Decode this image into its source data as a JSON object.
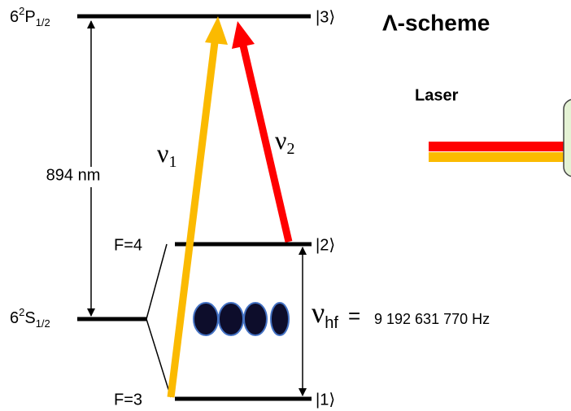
{
  "levels": {
    "p_state": {
      "base": "6",
      "sup": "2",
      "main": "P",
      "sub": "1/2",
      "ket": "|3⟩"
    },
    "s_state": {
      "base": "6",
      "sup": "2",
      "main": "S",
      "sub": "1/2"
    },
    "upper_hf": {
      "label": "F=4",
      "ket": "|2⟩"
    },
    "lower_hf": {
      "label": "F=3",
      "ket": "|1⟩"
    }
  },
  "wavelength": "894 nm",
  "transitions": {
    "nu1": {
      "symbol": "ν",
      "sub": "1"
    },
    "nu2": {
      "symbol": "ν",
      "sub": "2"
    }
  },
  "scheme_title": "Λ-scheme",
  "laser_label": "Laser",
  "hyperfine": {
    "symbol": "ν",
    "sub": "hf",
    "equals": "=",
    "value": "9 192 631 770 Hz"
  }
}
